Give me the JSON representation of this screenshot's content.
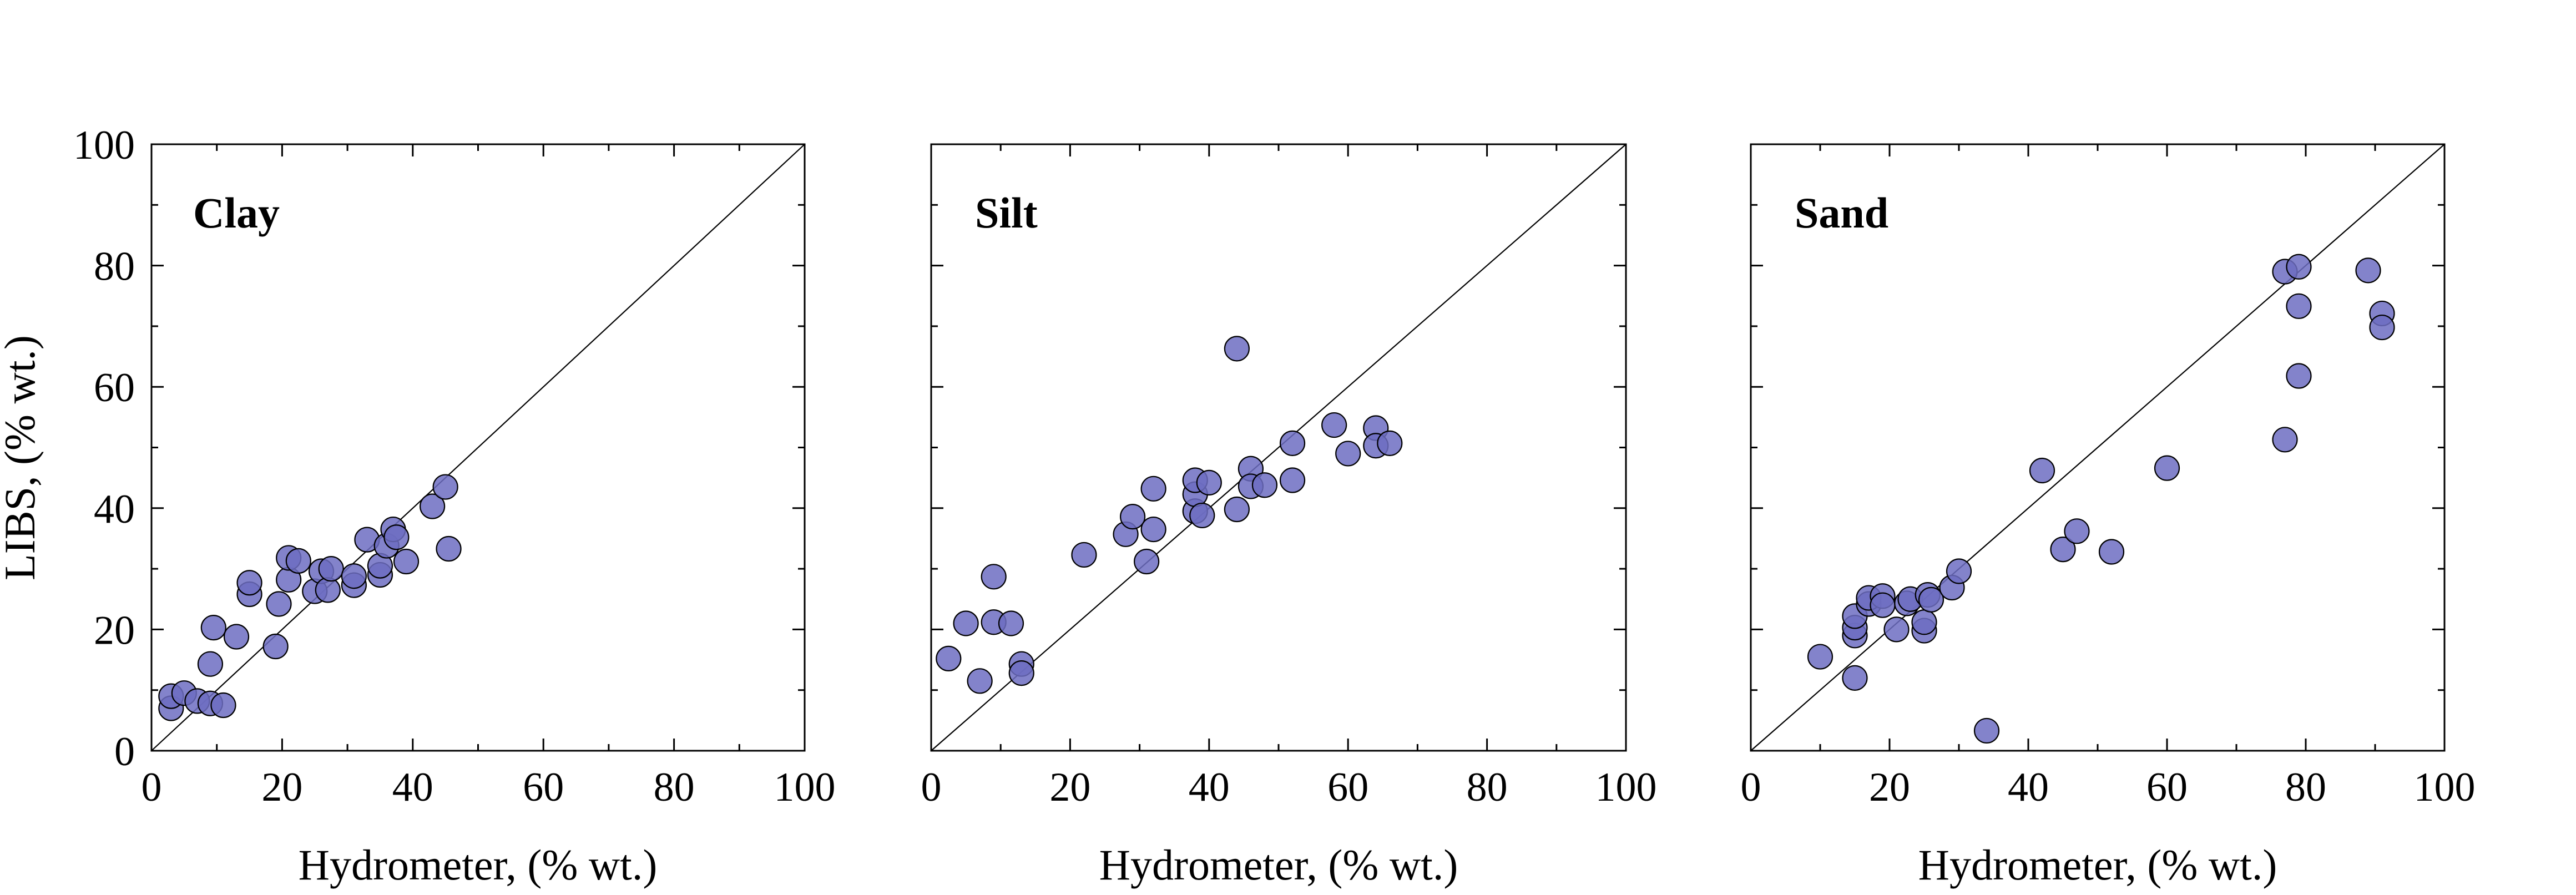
{
  "chart_data": [
    {
      "type": "scatter",
      "title": "Clay",
      "xlabel": "Hydrometer,  (% wt.)",
      "ylabel": "LIBS,  (% wt.)",
      "xlim": [
        0,
        100
      ],
      "ylim": [
        0,
        100
      ],
      "xticks": [
        "0",
        "20",
        "40",
        "60",
        "80",
        "100"
      ],
      "yticks": [
        "0",
        "20",
        "40",
        "60",
        "80",
        "100"
      ],
      "reference_line": "y = x",
      "grid": false,
      "points": [
        {
          "x": 3,
          "y": 7
        },
        {
          "x": 3,
          "y": 9
        },
        {
          "x": 5,
          "y": 9.5
        },
        {
          "x": 7,
          "y": 8.2
        },
        {
          "x": 9,
          "y": 7.8
        },
        {
          "x": 11,
          "y": 7.5
        },
        {
          "x": 9,
          "y": 14.3
        },
        {
          "x": 9.5,
          "y": 20.3
        },
        {
          "x": 13,
          "y": 18.8
        },
        {
          "x": 15,
          "y": 25.8
        },
        {
          "x": 15,
          "y": 27.7
        },
        {
          "x": 19,
          "y": 17.2
        },
        {
          "x": 19.5,
          "y": 24.2
        },
        {
          "x": 21,
          "y": 28.2
        },
        {
          "x": 21,
          "y": 31.8
        },
        {
          "x": 22.5,
          "y": 31.3
        },
        {
          "x": 25,
          "y": 26.3
        },
        {
          "x": 26,
          "y": 29.6
        },
        {
          "x": 27,
          "y": 26.5
        },
        {
          "x": 27.5,
          "y": 30
        },
        {
          "x": 31,
          "y": 27.3
        },
        {
          "x": 31,
          "y": 28.8
        },
        {
          "x": 33,
          "y": 34.8
        },
        {
          "x": 35,
          "y": 29
        },
        {
          "x": 35,
          "y": 30.5
        },
        {
          "x": 36,
          "y": 33.8
        },
        {
          "x": 37,
          "y": 36.5
        },
        {
          "x": 37.5,
          "y": 35.2
        },
        {
          "x": 39,
          "y": 31.2
        },
        {
          "x": 43,
          "y": 40.3
        },
        {
          "x": 45,
          "y": 43.5
        },
        {
          "x": 45.5,
          "y": 33.3
        }
      ]
    },
    {
      "type": "scatter",
      "title": "Silt",
      "xlabel": "Hydrometer,  (% wt.)",
      "ylabel": "",
      "xlim": [
        0,
        100
      ],
      "ylim": [
        0,
        100
      ],
      "xticks": [
        "0",
        "20",
        "40",
        "60",
        "80",
        "100"
      ],
      "yticks": [],
      "reference_line": "y = x",
      "grid": false,
      "points": [
        {
          "x": 2.5,
          "y": 15.2
        },
        {
          "x": 5,
          "y": 21
        },
        {
          "x": 7,
          "y": 11.5
        },
        {
          "x": 9,
          "y": 28.7
        },
        {
          "x": 9,
          "y": 21.2
        },
        {
          "x": 11.5,
          "y": 21
        },
        {
          "x": 13,
          "y": 14.3
        },
        {
          "x": 13,
          "y": 12.8
        },
        {
          "x": 22,
          "y": 32.3
        },
        {
          "x": 28,
          "y": 35.7
        },
        {
          "x": 29,
          "y": 38.6
        },
        {
          "x": 31,
          "y": 31.2
        },
        {
          "x": 32,
          "y": 36.5
        },
        {
          "x": 32,
          "y": 43.2
        },
        {
          "x": 38,
          "y": 39.5
        },
        {
          "x": 38,
          "y": 42.3
        },
        {
          "x": 38,
          "y": 44.6
        },
        {
          "x": 39,
          "y": 38.8
        },
        {
          "x": 40,
          "y": 44.2
        },
        {
          "x": 44,
          "y": 39.8
        },
        {
          "x": 44,
          "y": 66.3
        },
        {
          "x": 46,
          "y": 46.5
        },
        {
          "x": 46,
          "y": 43.6
        },
        {
          "x": 48,
          "y": 43.8
        },
        {
          "x": 52,
          "y": 44.6
        },
        {
          "x": 52,
          "y": 50.7
        },
        {
          "x": 58,
          "y": 53.7
        },
        {
          "x": 60,
          "y": 49
        },
        {
          "x": 64,
          "y": 53.2
        },
        {
          "x": 64,
          "y": 50.3
        },
        {
          "x": 66,
          "y": 50.7
        }
      ]
    },
    {
      "type": "scatter",
      "title": "Sand",
      "xlabel": "Hydrometer,  (% wt.)",
      "ylabel": "",
      "xlim": [
        0,
        100
      ],
      "ylim": [
        0,
        100
      ],
      "xticks": [
        "0",
        "20",
        "40",
        "60",
        "80",
        "100"
      ],
      "yticks": [],
      "reference_line": "y = x",
      "grid": false,
      "points": [
        {
          "x": 10,
          "y": 15.5
        },
        {
          "x": 15,
          "y": 12
        },
        {
          "x": 15,
          "y": 19
        },
        {
          "x": 15,
          "y": 20.3
        },
        {
          "x": 15,
          "y": 22.2
        },
        {
          "x": 17,
          "y": 24.2
        },
        {
          "x": 17,
          "y": 25.2
        },
        {
          "x": 19,
          "y": 25.5
        },
        {
          "x": 19,
          "y": 24
        },
        {
          "x": 21,
          "y": 20
        },
        {
          "x": 22.5,
          "y": 24.3
        },
        {
          "x": 23,
          "y": 25
        },
        {
          "x": 25,
          "y": 19.8
        },
        {
          "x": 25,
          "y": 21.2
        },
        {
          "x": 25.5,
          "y": 25.7
        },
        {
          "x": 26,
          "y": 24.9
        },
        {
          "x": 29,
          "y": 26.9
        },
        {
          "x": 30,
          "y": 29.6
        },
        {
          "x": 34,
          "y": 3.3
        },
        {
          "x": 42,
          "y": 46.2
        },
        {
          "x": 45,
          "y": 33.2
        },
        {
          "x": 47,
          "y": 36.2
        },
        {
          "x": 52,
          "y": 32.8
        },
        {
          "x": 60,
          "y": 46.6
        },
        {
          "x": 77,
          "y": 51.3
        },
        {
          "x": 77,
          "y": 79
        },
        {
          "x": 79,
          "y": 79.8
        },
        {
          "x": 79,
          "y": 61.8
        },
        {
          "x": 79,
          "y": 73.3
        },
        {
          "x": 89,
          "y": 79.2
        },
        {
          "x": 91,
          "y": 72.1
        },
        {
          "x": 91,
          "y": 69.8
        }
      ]
    }
  ],
  "style": {
    "marker_fill": "#6d6dc2",
    "marker_stroke": "#000000",
    "marker_opacity": 0.85,
    "axis_color": "#000000"
  }
}
